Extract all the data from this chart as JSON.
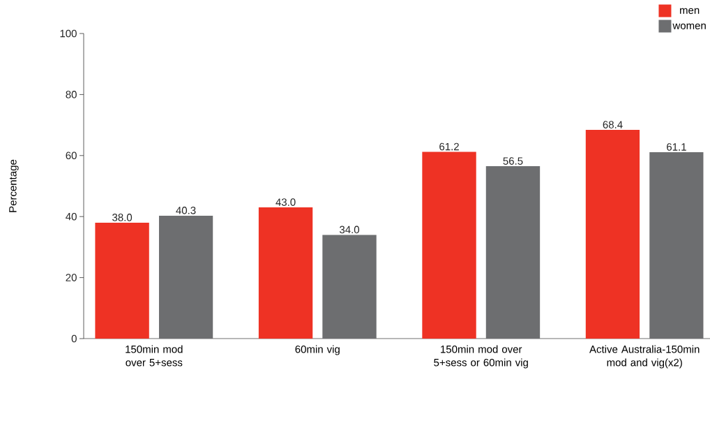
{
  "chart_data": {
    "type": "bar",
    "ylabel": "Percentage",
    "categories": [
      "150min mod over 5+sess",
      "60min vig",
      "150min mod over 5+sess or 60min vig",
      "Active Australia-150min mod and vig(x2)"
    ],
    "series": [
      {
        "name": "men",
        "color": "#ee3224",
        "values": [
          38.0,
          43.0,
          61.2,
          68.4
        ],
        "value_labels": [
          "38.0",
          "43.0",
          "61.2",
          "68.4"
        ]
      },
      {
        "name": "women",
        "color": "#6d6e70",
        "values": [
          40.3,
          34.0,
          56.5,
          61.1
        ],
        "value_labels": [
          "40.3",
          "34.0",
          "56.5",
          "61.1"
        ]
      }
    ],
    "ylim": [
      0,
      100
    ],
    "yticks": [
      0,
      20,
      40,
      60,
      80,
      100
    ],
    "grid": false,
    "legend": "top right"
  }
}
